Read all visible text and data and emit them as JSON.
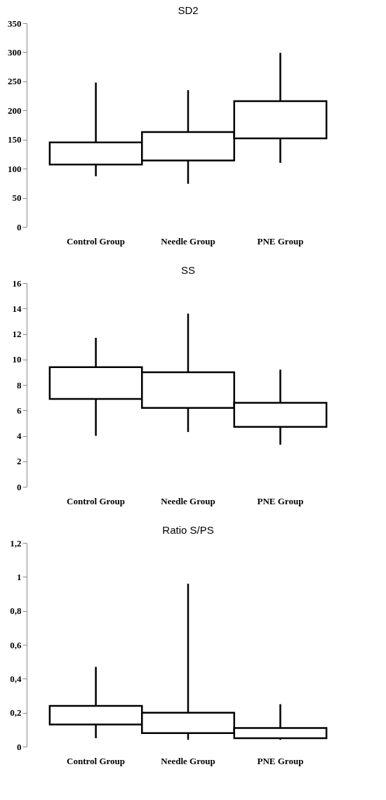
{
  "chart_data": [
    {
      "type": "box",
      "title": "SD2",
      "categories": [
        "Control Group",
        "Needle Group",
        "PNE Group"
      ],
      "ylim": [
        0,
        350
      ],
      "yticks": [
        0,
        50,
        100,
        150,
        200,
        250,
        300,
        350
      ],
      "grid": false,
      "boxes": [
        {
          "low": 87,
          "q1": 107,
          "q3": 145,
          "high": 248
        },
        {
          "low": 74,
          "q1": 114,
          "q3": 163,
          "high": 235
        },
        {
          "low": 110,
          "q1": 152,
          "q3": 216,
          "high": 299
        }
      ]
    },
    {
      "type": "box",
      "title": "SS",
      "categories": [
        "Control Group",
        "Needle Group",
        "PNE Group"
      ],
      "ylim": [
        0,
        16
      ],
      "yticks": [
        0,
        2,
        4,
        6,
        8,
        10,
        12,
        14,
        16
      ],
      "grid": false,
      "boxes": [
        {
          "low": 4.0,
          "q1": 6.9,
          "q3": 9.4,
          "high": 11.7
        },
        {
          "low": 4.3,
          "q1": 6.2,
          "q3": 9.0,
          "high": 13.6
        },
        {
          "low": 3.3,
          "q1": 4.7,
          "q3": 6.6,
          "high": 9.2
        }
      ]
    },
    {
      "type": "box",
      "title": "Ratio S/PS",
      "categories": [
        "Control Group",
        "Needle Group",
        "PNE Group"
      ],
      "ylim": [
        0,
        1.2
      ],
      "yticks": [
        0,
        {
          "value": 0.2,
          "label": "0,2"
        },
        {
          "value": 0.4,
          "label": "0,4"
        },
        {
          "value": 0.6,
          "label": "0,6"
        },
        {
          "value": 0.8,
          "label": "0,8"
        },
        1,
        {
          "value": 1.2,
          "label": "1,2"
        }
      ],
      "grid": false,
      "boxes": [
        {
          "low": 0.05,
          "q1": 0.13,
          "q3": 0.24,
          "high": 0.47
        },
        {
          "low": 0.04,
          "q1": 0.08,
          "q3": 0.2,
          "high": 0.96
        },
        {
          "low": 0.04,
          "q1": 0.05,
          "q3": 0.11,
          "high": 0.25
        }
      ]
    }
  ]
}
